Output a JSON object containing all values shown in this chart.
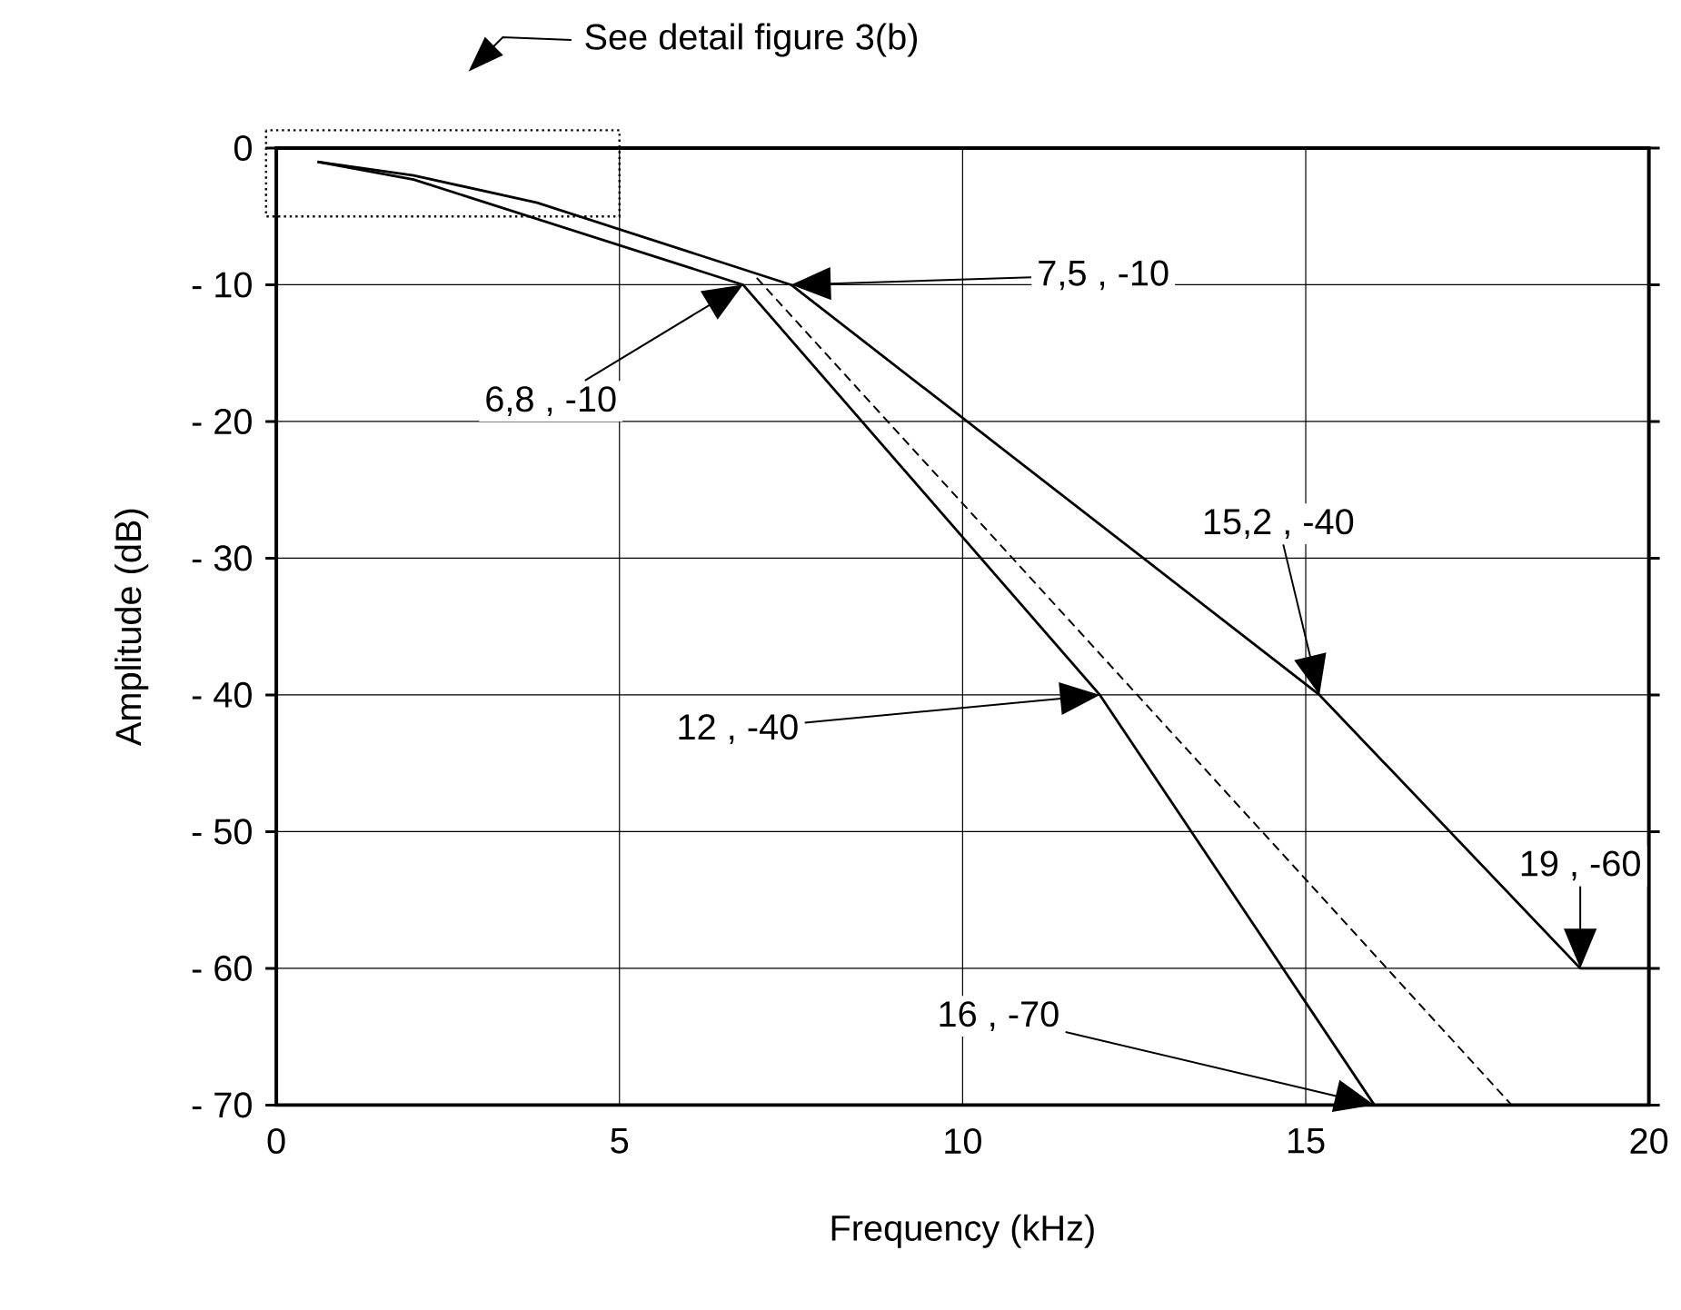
{
  "chart_data": {
    "type": "line",
    "xlabel": "Frequency  (kHz)",
    "ylabel": "Amplitude  (dB)",
    "xlim": [
      0,
      20
    ],
    "ylim": [
      -70,
      0
    ],
    "xticks": [
      0,
      5,
      10,
      15,
      20
    ],
    "yticks": [
      {
        "value": 0,
        "label": "0"
      },
      {
        "value": -10,
        "label": "- 10"
      },
      {
        "value": -20,
        "label": "- 20"
      },
      {
        "value": -30,
        "label": "- 30"
      },
      {
        "value": -40,
        "label": "- 40"
      },
      {
        "value": -50,
        "label": "- 50"
      },
      {
        "value": -60,
        "label": "- 60"
      },
      {
        "value": -70,
        "label": "- 70"
      }
    ],
    "grid": true,
    "marker": "none",
    "series": [
      {
        "color": "#000000",
        "line_style": "solid",
        "x": [
          0.6,
          2,
          3.8,
          7.5,
          15.2,
          19,
          20
        ],
        "values": [
          -1,
          -2,
          -4,
          -10,
          -40,
          -60,
          -60
        ]
      },
      {
        "color": "#000000",
        "line_style": "solid",
        "x": [
          0.6,
          2,
          6.8,
          12,
          16
        ],
        "values": [
          -1,
          -2.3,
          -10,
          -40,
          -70
        ]
      },
      {
        "color": "#000000",
        "line_style": "dashed",
        "x": [
          7,
          18
        ],
        "values": [
          -9.5,
          -70
        ]
      }
    ],
    "annotations": [
      "See detail figure 3(b)",
      "7,5 , -10",
      "6,8 , -10",
      "15,2 , -40",
      "12 , -40",
      {
        "text": "19 , -60",
        "x": 19,
        "y": -60
      },
      "16 , -70"
    ]
  }
}
